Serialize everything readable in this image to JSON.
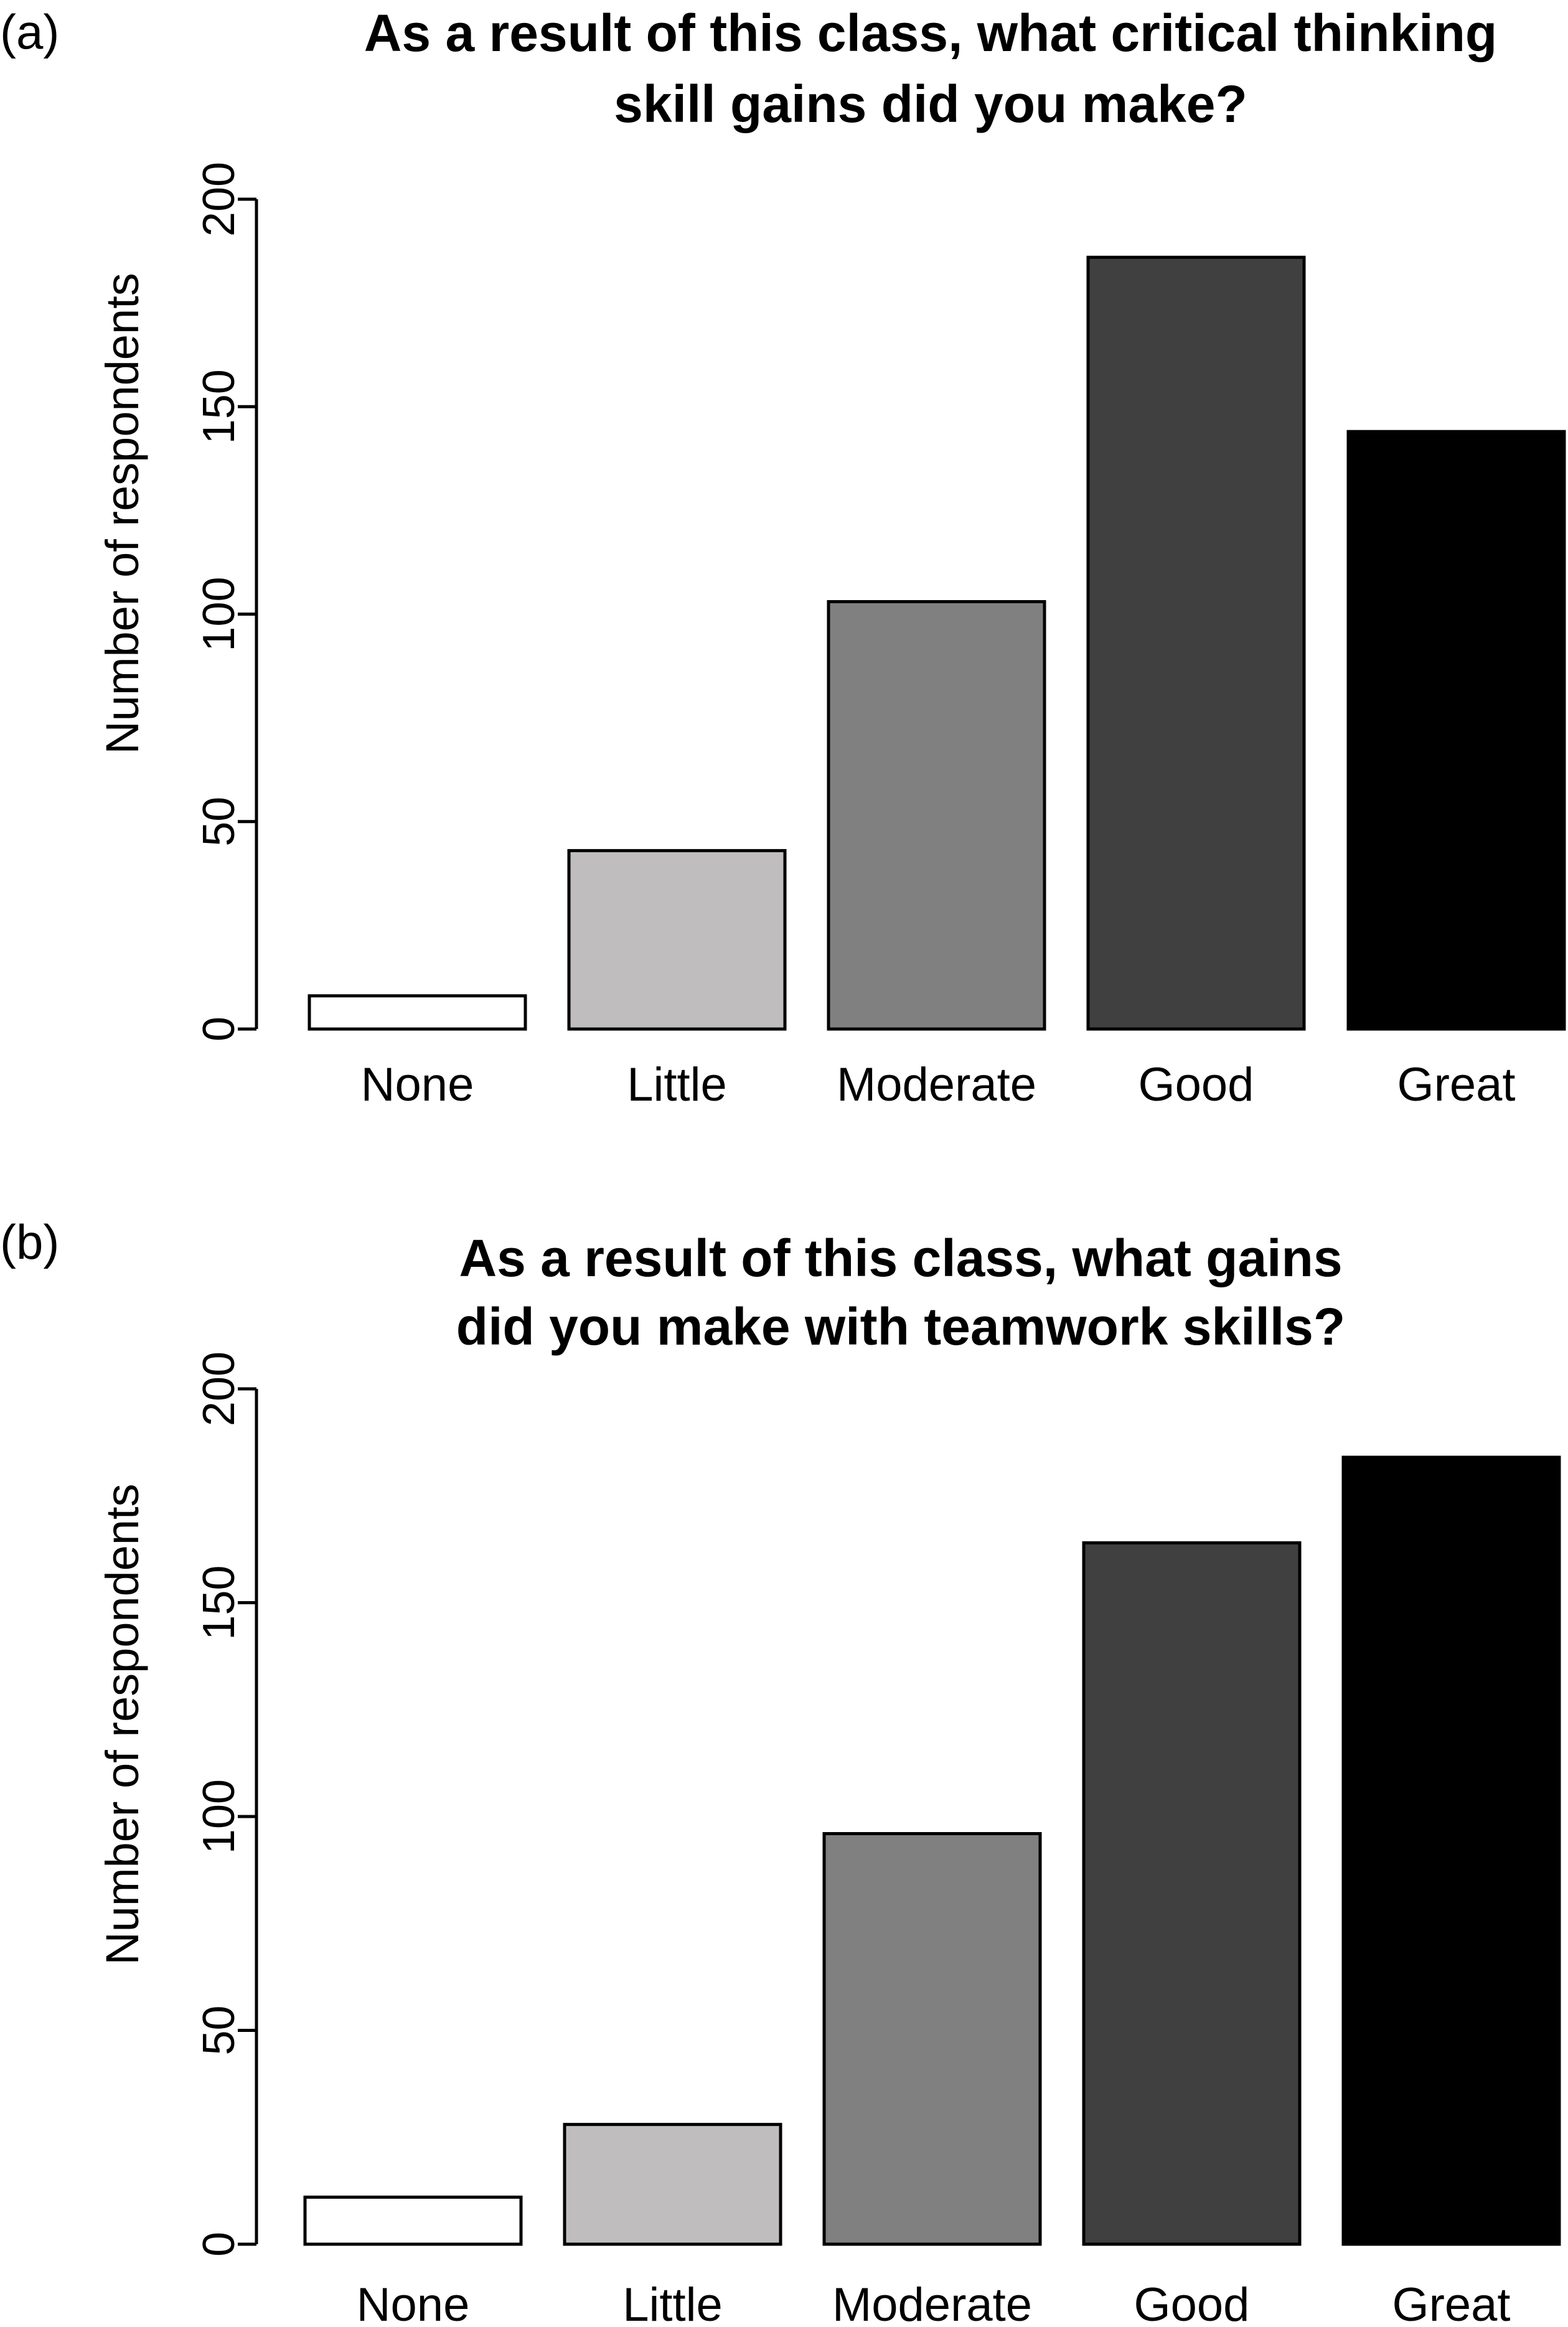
{
  "chart_data": [
    {
      "type": "bar",
      "panel_label": "(a)",
      "title_lines": [
        "As a result of this class, what critical thinking",
        "skill gains did you make?"
      ],
      "ylabel": "Number of respondents",
      "xlabel": "",
      "categories": [
        "None",
        "Little",
        "Moderate",
        "Good",
        "Great"
      ],
      "values": [
        8,
        43,
        103,
        186,
        144
      ],
      "colors": [
        "#ffffff",
        "#bfbdbe",
        "#808080",
        "#404040",
        "#000000"
      ],
      "ylim": [
        0,
        200
      ],
      "yticks": [
        "0",
        "50",
        "100",
        "150",
        "200"
      ],
      "grid": false
    },
    {
      "type": "bar",
      "panel_label": "(b)",
      "title_lines": [
        "As a result of this class, what gains",
        "did you make with teamwork skills?"
      ],
      "ylabel": "Number of respondents",
      "xlabel": "",
      "categories": [
        "None",
        "Little",
        "Moderate",
        "Good",
        "Great"
      ],
      "values": [
        11,
        28,
        96,
        164,
        184
      ],
      "colors": [
        "#ffffff",
        "#bfbdbe",
        "#808080",
        "#404040",
        "#000000"
      ],
      "ylim": [
        0,
        200
      ],
      "yticks": [
        "0",
        "50",
        "100",
        "150",
        "200"
      ],
      "grid": false
    }
  ]
}
